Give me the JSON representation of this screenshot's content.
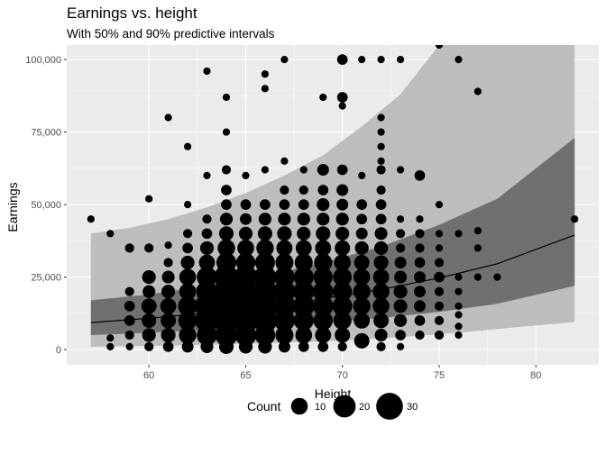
{
  "chart_data": {
    "type": "scatter",
    "title": "Earnings vs. height",
    "subtitle": "With 50% and 90% predictive intervals",
    "xlabel": "Height",
    "ylabel": "Earnings",
    "xlim": [
      55.75,
      83.25
    ],
    "ylim": [
      -5250,
      105000
    ],
    "x_ticks": [
      60,
      65,
      70,
      75,
      80
    ],
    "x_tick_labels": [
      "60",
      "65",
      "70",
      "75",
      "80"
    ],
    "y_ticks": [
      0,
      25000,
      50000,
      75000,
      100000
    ],
    "y_tick_labels": [
      "0",
      "25,000",
      "50,000",
      "75,000",
      "100,000"
    ],
    "grid": true,
    "legend_position": "bottom",
    "legend": {
      "title": "Count",
      "items": [
        {
          "label": "10",
          "value": 10
        },
        {
          "label": "20",
          "value": 20
        },
        {
          "label": "30",
          "value": 30
        }
      ]
    },
    "colors": {
      "panel": "#ebebeb",
      "interval_90": "#bdbdbd",
      "interval_50": "#707070",
      "points": "#000000",
      "line": "#000000"
    },
    "fit_line": {
      "x": [
        57,
        60,
        63,
        66,
        69,
        72,
        75,
        78,
        82
      ],
      "y": [
        9300,
        10800,
        12600,
        14800,
        17500,
        20700,
        24700,
        29600,
        39500
      ]
    },
    "interval_90": {
      "x": [
        57,
        59,
        61,
        63,
        65,
        67,
        69,
        71,
        73,
        75,
        77,
        79,
        82
      ],
      "lower": [
        1000,
        1200,
        1400,
        1700,
        2000,
        2400,
        2900,
        3500,
        4300,
        5300,
        6500,
        7700,
        9500
      ],
      "upper": [
        40000,
        42000,
        45000,
        49000,
        54000,
        60000,
        67000,
        77000,
        88000,
        105000,
        105000,
        105000,
        105000
      ]
    },
    "interval_50": {
      "x": [
        57,
        60,
        63,
        66,
        69,
        72,
        75,
        78,
        82
      ],
      "lower": [
        5000,
        5800,
        6700,
        7800,
        9200,
        10900,
        13000,
        15800,
        22000
      ],
      "upper": [
        17000,
        19000,
        22000,
        25500,
        30000,
        35500,
        43000,
        52000,
        73000
      ]
    },
    "points": [
      {
        "x": 57,
        "y": 45000,
        "count": 1
      },
      {
        "x": 58,
        "y": 40000,
        "count": 1
      },
      {
        "x": 58,
        "y": 4000,
        "count": 1
      },
      {
        "x": 58,
        "y": 1000,
        "count": 1
      },
      {
        "x": 59,
        "y": 35000,
        "count": 2
      },
      {
        "x": 59,
        "y": 20000,
        "count": 2
      },
      {
        "x": 59,
        "y": 15000,
        "count": 3
      },
      {
        "x": 59,
        "y": 10000,
        "count": 3
      },
      {
        "x": 59,
        "y": 5000,
        "count": 2
      },
      {
        "x": 59,
        "y": 1000,
        "count": 1
      },
      {
        "x": 60,
        "y": 52000,
        "count": 1
      },
      {
        "x": 60,
        "y": 35000,
        "count": 2
      },
      {
        "x": 60,
        "y": 25000,
        "count": 6
      },
      {
        "x": 60,
        "y": 20000,
        "count": 5
      },
      {
        "x": 60,
        "y": 15000,
        "count": 8
      },
      {
        "x": 60,
        "y": 10000,
        "count": 7
      },
      {
        "x": 60,
        "y": 5000,
        "count": 6
      },
      {
        "x": 60,
        "y": 1000,
        "count": 2
      },
      {
        "x": 61,
        "y": 80000,
        "count": 1
      },
      {
        "x": 61,
        "y": 36000,
        "count": 1
      },
      {
        "x": 61,
        "y": 30000,
        "count": 2
      },
      {
        "x": 61,
        "y": 25000,
        "count": 5
      },
      {
        "x": 61,
        "y": 20000,
        "count": 6
      },
      {
        "x": 61,
        "y": 15000,
        "count": 9
      },
      {
        "x": 61,
        "y": 10000,
        "count": 8
      },
      {
        "x": 61,
        "y": 5000,
        "count": 7
      },
      {
        "x": 61,
        "y": 1000,
        "count": 3
      },
      {
        "x": 62,
        "y": 70000,
        "count": 1
      },
      {
        "x": 62,
        "y": 50000,
        "count": 1
      },
      {
        "x": 62,
        "y": 40000,
        "count": 2
      },
      {
        "x": 62,
        "y": 35000,
        "count": 3
      },
      {
        "x": 62,
        "y": 30000,
        "count": 6
      },
      {
        "x": 62,
        "y": 25000,
        "count": 10
      },
      {
        "x": 62,
        "y": 20000,
        "count": 10
      },
      {
        "x": 62,
        "y": 15000,
        "count": 14
      },
      {
        "x": 62,
        "y": 10000,
        "count": 13
      },
      {
        "x": 62,
        "y": 5000,
        "count": 11
      },
      {
        "x": 62,
        "y": 1000,
        "count": 4
      },
      {
        "x": 63,
        "y": 96000,
        "count": 1
      },
      {
        "x": 63,
        "y": 60000,
        "count": 1
      },
      {
        "x": 63,
        "y": 45000,
        "count": 2
      },
      {
        "x": 63,
        "y": 40000,
        "count": 3
      },
      {
        "x": 63,
        "y": 35000,
        "count": 6
      },
      {
        "x": 63,
        "y": 30000,
        "count": 9
      },
      {
        "x": 63,
        "y": 25000,
        "count": 16
      },
      {
        "x": 63,
        "y": 20000,
        "count": 18
      },
      {
        "x": 63,
        "y": 15000,
        "count": 24
      },
      {
        "x": 63,
        "y": 10000,
        "count": 22
      },
      {
        "x": 63,
        "y": 5000,
        "count": 16
      },
      {
        "x": 63,
        "y": 1000,
        "count": 5
      },
      {
        "x": 64,
        "y": 87000,
        "count": 1
      },
      {
        "x": 64,
        "y": 75000,
        "count": 1
      },
      {
        "x": 64,
        "y": 62000,
        "count": 2
      },
      {
        "x": 64,
        "y": 55000,
        "count": 3
      },
      {
        "x": 64,
        "y": 50000,
        "count": 3
      },
      {
        "x": 64,
        "y": 45000,
        "count": 5
      },
      {
        "x": 64,
        "y": 40000,
        "count": 7
      },
      {
        "x": 64,
        "y": 35000,
        "count": 11
      },
      {
        "x": 64,
        "y": 30000,
        "count": 15
      },
      {
        "x": 64,
        "y": 25000,
        "count": 24
      },
      {
        "x": 64,
        "y": 20000,
        "count": 27
      },
      {
        "x": 64,
        "y": 15000,
        "count": 32
      },
      {
        "x": 64,
        "y": 10000,
        "count": 28
      },
      {
        "x": 64,
        "y": 5000,
        "count": 20
      },
      {
        "x": 64,
        "y": 1000,
        "count": 7
      },
      {
        "x": 65,
        "y": 60000,
        "count": 1
      },
      {
        "x": 65,
        "y": 50000,
        "count": 3
      },
      {
        "x": 65,
        "y": 45000,
        "count": 4
      },
      {
        "x": 65,
        "y": 40000,
        "count": 6
      },
      {
        "x": 65,
        "y": 35000,
        "count": 10
      },
      {
        "x": 65,
        "y": 30000,
        "count": 14
      },
      {
        "x": 65,
        "y": 25000,
        "count": 22
      },
      {
        "x": 65,
        "y": 20000,
        "count": 25
      },
      {
        "x": 65,
        "y": 15000,
        "count": 30
      },
      {
        "x": 65,
        "y": 10000,
        "count": 26
      },
      {
        "x": 65,
        "y": 5000,
        "count": 18
      },
      {
        "x": 65,
        "y": 1000,
        "count": 6
      },
      {
        "x": 66,
        "y": 95000,
        "count": 1
      },
      {
        "x": 66,
        "y": 90000,
        "count": 1
      },
      {
        "x": 66,
        "y": 62000,
        "count": 1
      },
      {
        "x": 66,
        "y": 50000,
        "count": 3
      },
      {
        "x": 66,
        "y": 45000,
        "count": 5
      },
      {
        "x": 66,
        "y": 40000,
        "count": 7
      },
      {
        "x": 66,
        "y": 35000,
        "count": 11
      },
      {
        "x": 66,
        "y": 30000,
        "count": 15
      },
      {
        "x": 66,
        "y": 25000,
        "count": 20
      },
      {
        "x": 66,
        "y": 20000,
        "count": 24
      },
      {
        "x": 66,
        "y": 15000,
        "count": 28
      },
      {
        "x": 66,
        "y": 10000,
        "count": 24
      },
      {
        "x": 66,
        "y": 5000,
        "count": 16
      },
      {
        "x": 66,
        "y": 1000,
        "count": 6
      },
      {
        "x": 67,
        "y": 100000,
        "count": 1
      },
      {
        "x": 67,
        "y": 65000,
        "count": 1
      },
      {
        "x": 67,
        "y": 55000,
        "count": 2
      },
      {
        "x": 67,
        "y": 50000,
        "count": 3
      },
      {
        "x": 67,
        "y": 45000,
        "count": 5
      },
      {
        "x": 67,
        "y": 40000,
        "count": 7
      },
      {
        "x": 67,
        "y": 35000,
        "count": 9
      },
      {
        "x": 67,
        "y": 30000,
        "count": 12
      },
      {
        "x": 67,
        "y": 25000,
        "count": 16
      },
      {
        "x": 67,
        "y": 20000,
        "count": 19
      },
      {
        "x": 67,
        "y": 15000,
        "count": 20
      },
      {
        "x": 67,
        "y": 10000,
        "count": 17
      },
      {
        "x": 67,
        "y": 5000,
        "count": 12
      },
      {
        "x": 67,
        "y": 1000,
        "count": 4
      },
      {
        "x": 68,
        "y": 62000,
        "count": 1
      },
      {
        "x": 68,
        "y": 55000,
        "count": 2
      },
      {
        "x": 68,
        "y": 50000,
        "count": 3
      },
      {
        "x": 68,
        "y": 45000,
        "count": 5
      },
      {
        "x": 68,
        "y": 40000,
        "count": 6
      },
      {
        "x": 68,
        "y": 35000,
        "count": 9
      },
      {
        "x": 68,
        "y": 30000,
        "count": 12
      },
      {
        "x": 68,
        "y": 25000,
        "count": 15
      },
      {
        "x": 68,
        "y": 20000,
        "count": 17
      },
      {
        "x": 68,
        "y": 15000,
        "count": 18
      },
      {
        "x": 68,
        "y": 10000,
        "count": 15
      },
      {
        "x": 68,
        "y": 5000,
        "count": 10
      },
      {
        "x": 68,
        "y": 1000,
        "count": 3
      },
      {
        "x": 69,
        "y": 87000,
        "count": 1
      },
      {
        "x": 69,
        "y": 62000,
        "count": 4
      },
      {
        "x": 69,
        "y": 55000,
        "count": 3
      },
      {
        "x": 69,
        "y": 50000,
        "count": 5
      },
      {
        "x": 69,
        "y": 45000,
        "count": 5
      },
      {
        "x": 69,
        "y": 40000,
        "count": 7
      },
      {
        "x": 69,
        "y": 35000,
        "count": 9
      },
      {
        "x": 69,
        "y": 30000,
        "count": 12
      },
      {
        "x": 69,
        "y": 25000,
        "count": 14
      },
      {
        "x": 69,
        "y": 20000,
        "count": 16
      },
      {
        "x": 69,
        "y": 15000,
        "count": 16
      },
      {
        "x": 69,
        "y": 10000,
        "count": 14
      },
      {
        "x": 69,
        "y": 5000,
        "count": 9
      },
      {
        "x": 69,
        "y": 1000,
        "count": 3
      },
      {
        "x": 70,
        "y": 100000,
        "count": 3
      },
      {
        "x": 70,
        "y": 87000,
        "count": 3
      },
      {
        "x": 70,
        "y": 84000,
        "count": 1
      },
      {
        "x": 70,
        "y": 62000,
        "count": 3
      },
      {
        "x": 70,
        "y": 55000,
        "count": 4
      },
      {
        "x": 70,
        "y": 50000,
        "count": 4
      },
      {
        "x": 70,
        "y": 45000,
        "count": 5
      },
      {
        "x": 70,
        "y": 40000,
        "count": 6
      },
      {
        "x": 70,
        "y": 35000,
        "count": 8
      },
      {
        "x": 70,
        "y": 30000,
        "count": 10
      },
      {
        "x": 70,
        "y": 25000,
        "count": 13
      },
      {
        "x": 70,
        "y": 20000,
        "count": 14
      },
      {
        "x": 70,
        "y": 15000,
        "count": 15
      },
      {
        "x": 70,
        "y": 10000,
        "count": 12
      },
      {
        "x": 70,
        "y": 5000,
        "count": 8
      },
      {
        "x": 70,
        "y": 1000,
        "count": 2
      },
      {
        "x": 71,
        "y": 100000,
        "count": 1
      },
      {
        "x": 71,
        "y": 60000,
        "count": 1
      },
      {
        "x": 71,
        "y": 50000,
        "count": 3
      },
      {
        "x": 71,
        "y": 45000,
        "count": 3
      },
      {
        "x": 71,
        "y": 40000,
        "count": 4
      },
      {
        "x": 71,
        "y": 35000,
        "count": 6
      },
      {
        "x": 71,
        "y": 30000,
        "count": 8
      },
      {
        "x": 71,
        "y": 25000,
        "count": 10
      },
      {
        "x": 71,
        "y": 20000,
        "count": 11
      },
      {
        "x": 71,
        "y": 15000,
        "count": 11
      },
      {
        "x": 71,
        "y": 10000,
        "count": 9
      },
      {
        "x": 71,
        "y": 3000,
        "count": 8
      },
      {
        "x": 72,
        "y": 100000,
        "count": 1
      },
      {
        "x": 72,
        "y": 80000,
        "count": 1
      },
      {
        "x": 72,
        "y": 75000,
        "count": 1
      },
      {
        "x": 72,
        "y": 70000,
        "count": 1
      },
      {
        "x": 72,
        "y": 65000,
        "count": 1
      },
      {
        "x": 72,
        "y": 62000,
        "count": 2
      },
      {
        "x": 72,
        "y": 55000,
        "count": 2
      },
      {
        "x": 72,
        "y": 50000,
        "count": 3
      },
      {
        "x": 72,
        "y": 45000,
        "count": 3
      },
      {
        "x": 72,
        "y": 40000,
        "count": 5
      },
      {
        "x": 72,
        "y": 35000,
        "count": 6
      },
      {
        "x": 72,
        "y": 30000,
        "count": 7
      },
      {
        "x": 72,
        "y": 25000,
        "count": 9
      },
      {
        "x": 72,
        "y": 20000,
        "count": 10
      },
      {
        "x": 72,
        "y": 15000,
        "count": 10
      },
      {
        "x": 72,
        "y": 10000,
        "count": 8
      },
      {
        "x": 72,
        "y": 5000,
        "count": 5
      },
      {
        "x": 72,
        "y": 1000,
        "count": 2
      },
      {
        "x": 73,
        "y": 100000,
        "count": 1
      },
      {
        "x": 73,
        "y": 62000,
        "count": 1
      },
      {
        "x": 73,
        "y": 45000,
        "count": 1
      },
      {
        "x": 73,
        "y": 40000,
        "count": 2
      },
      {
        "x": 73,
        "y": 35000,
        "count": 2
      },
      {
        "x": 73,
        "y": 30000,
        "count": 4
      },
      {
        "x": 73,
        "y": 25000,
        "count": 5
      },
      {
        "x": 73,
        "y": 20000,
        "count": 6
      },
      {
        "x": 73,
        "y": 15000,
        "count": 6
      },
      {
        "x": 73,
        "y": 10000,
        "count": 5
      },
      {
        "x": 73,
        "y": 5000,
        "count": 3
      },
      {
        "x": 73,
        "y": 1000,
        "count": 1
      },
      {
        "x": 74,
        "y": 60000,
        "count": 3
      },
      {
        "x": 74,
        "y": 45000,
        "count": 1
      },
      {
        "x": 74,
        "y": 40000,
        "count": 2
      },
      {
        "x": 74,
        "y": 35000,
        "count": 2
      },
      {
        "x": 74,
        "y": 30000,
        "count": 3
      },
      {
        "x": 74,
        "y": 25000,
        "count": 4
      },
      {
        "x": 74,
        "y": 20000,
        "count": 4
      },
      {
        "x": 74,
        "y": 15000,
        "count": 4
      },
      {
        "x": 74,
        "y": 10000,
        "count": 3
      },
      {
        "x": 74,
        "y": 5000,
        "count": 2
      },
      {
        "x": 75,
        "y": 105000,
        "count": 1
      },
      {
        "x": 75,
        "y": 50000,
        "count": 1
      },
      {
        "x": 75,
        "y": 40000,
        "count": 1
      },
      {
        "x": 75,
        "y": 35000,
        "count": 1
      },
      {
        "x": 75,
        "y": 30000,
        "count": 2
      },
      {
        "x": 75,
        "y": 25000,
        "count": 3
      },
      {
        "x": 75,
        "y": 20000,
        "count": 2
      },
      {
        "x": 75,
        "y": 15000,
        "count": 2
      },
      {
        "x": 75,
        "y": 10000,
        "count": 2
      },
      {
        "x": 75,
        "y": 5000,
        "count": 2
      },
      {
        "x": 76,
        "y": 100000,
        "count": 1
      },
      {
        "x": 76,
        "y": 40000,
        "count": 1
      },
      {
        "x": 76,
        "y": 25000,
        "count": 1
      },
      {
        "x": 76,
        "y": 20000,
        "count": 1
      },
      {
        "x": 76,
        "y": 15000,
        "count": 1
      },
      {
        "x": 76,
        "y": 12000,
        "count": 1
      },
      {
        "x": 76,
        "y": 8000,
        "count": 1
      },
      {
        "x": 76,
        "y": 5000,
        "count": 1
      },
      {
        "x": 77,
        "y": 89000,
        "count": 1
      },
      {
        "x": 77,
        "y": 41000,
        "count": 1
      },
      {
        "x": 77,
        "y": 35000,
        "count": 1
      },
      {
        "x": 77,
        "y": 25000,
        "count": 1
      },
      {
        "x": 78,
        "y": 25000,
        "count": 1
      },
      {
        "x": 82,
        "y": 45000,
        "count": 1
      }
    ]
  }
}
